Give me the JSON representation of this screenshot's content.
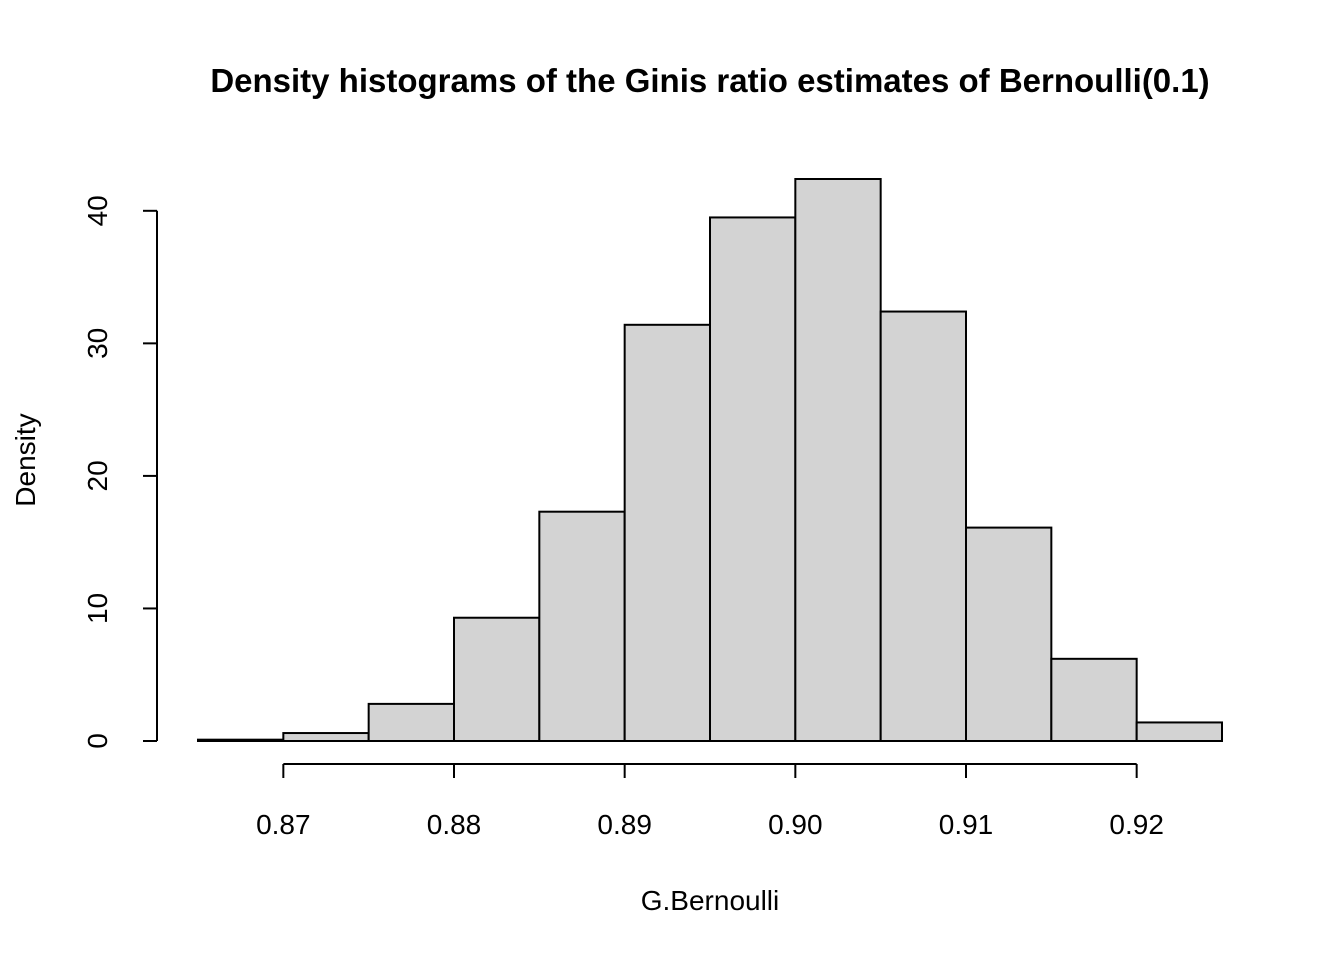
{
  "chart_data": {
    "type": "bar",
    "title": "Density histograms of the Ginis ratio estimates of Bernoulli(0.1)",
    "xlabel": "G.Bernoulli",
    "ylabel": "Density",
    "bins": [
      {
        "start": 0.865,
        "end": 0.87,
        "density": 0.1
      },
      {
        "start": 0.87,
        "end": 0.875,
        "density": 0.6
      },
      {
        "start": 0.875,
        "end": 0.88,
        "density": 2.8
      },
      {
        "start": 0.88,
        "end": 0.885,
        "density": 9.3
      },
      {
        "start": 0.885,
        "end": 0.89,
        "density": 17.3
      },
      {
        "start": 0.89,
        "end": 0.895,
        "density": 31.4
      },
      {
        "start": 0.895,
        "end": 0.9,
        "density": 39.5
      },
      {
        "start": 0.9,
        "end": 0.905,
        "density": 42.4
      },
      {
        "start": 0.905,
        "end": 0.91,
        "density": 32.4
      },
      {
        "start": 0.91,
        "end": 0.915,
        "density": 16.1
      },
      {
        "start": 0.915,
        "end": 0.92,
        "density": 6.2
      },
      {
        "start": 0.92,
        "end": 0.925,
        "density": 1.4
      }
    ],
    "x_ticks": [
      {
        "value": 0.87,
        "label": "0.87"
      },
      {
        "value": 0.88,
        "label": "0.88"
      },
      {
        "value": 0.89,
        "label": "0.89"
      },
      {
        "value": 0.9,
        "label": "0.90"
      },
      {
        "value": 0.91,
        "label": "0.91"
      },
      {
        "value": 0.92,
        "label": "0.92"
      }
    ],
    "y_ticks": [
      {
        "value": 0,
        "label": "0"
      },
      {
        "value": 10,
        "label": "10"
      },
      {
        "value": 20,
        "label": "20"
      },
      {
        "value": 30,
        "label": "30"
      },
      {
        "value": 40,
        "label": "40"
      }
    ],
    "xlim": [
      0.865,
      0.925
    ],
    "ylim": [
      0,
      42.4
    ],
    "grid": false,
    "colors": {
      "bar_fill": "#d3d3d3",
      "bar_stroke": "#000000"
    }
  }
}
